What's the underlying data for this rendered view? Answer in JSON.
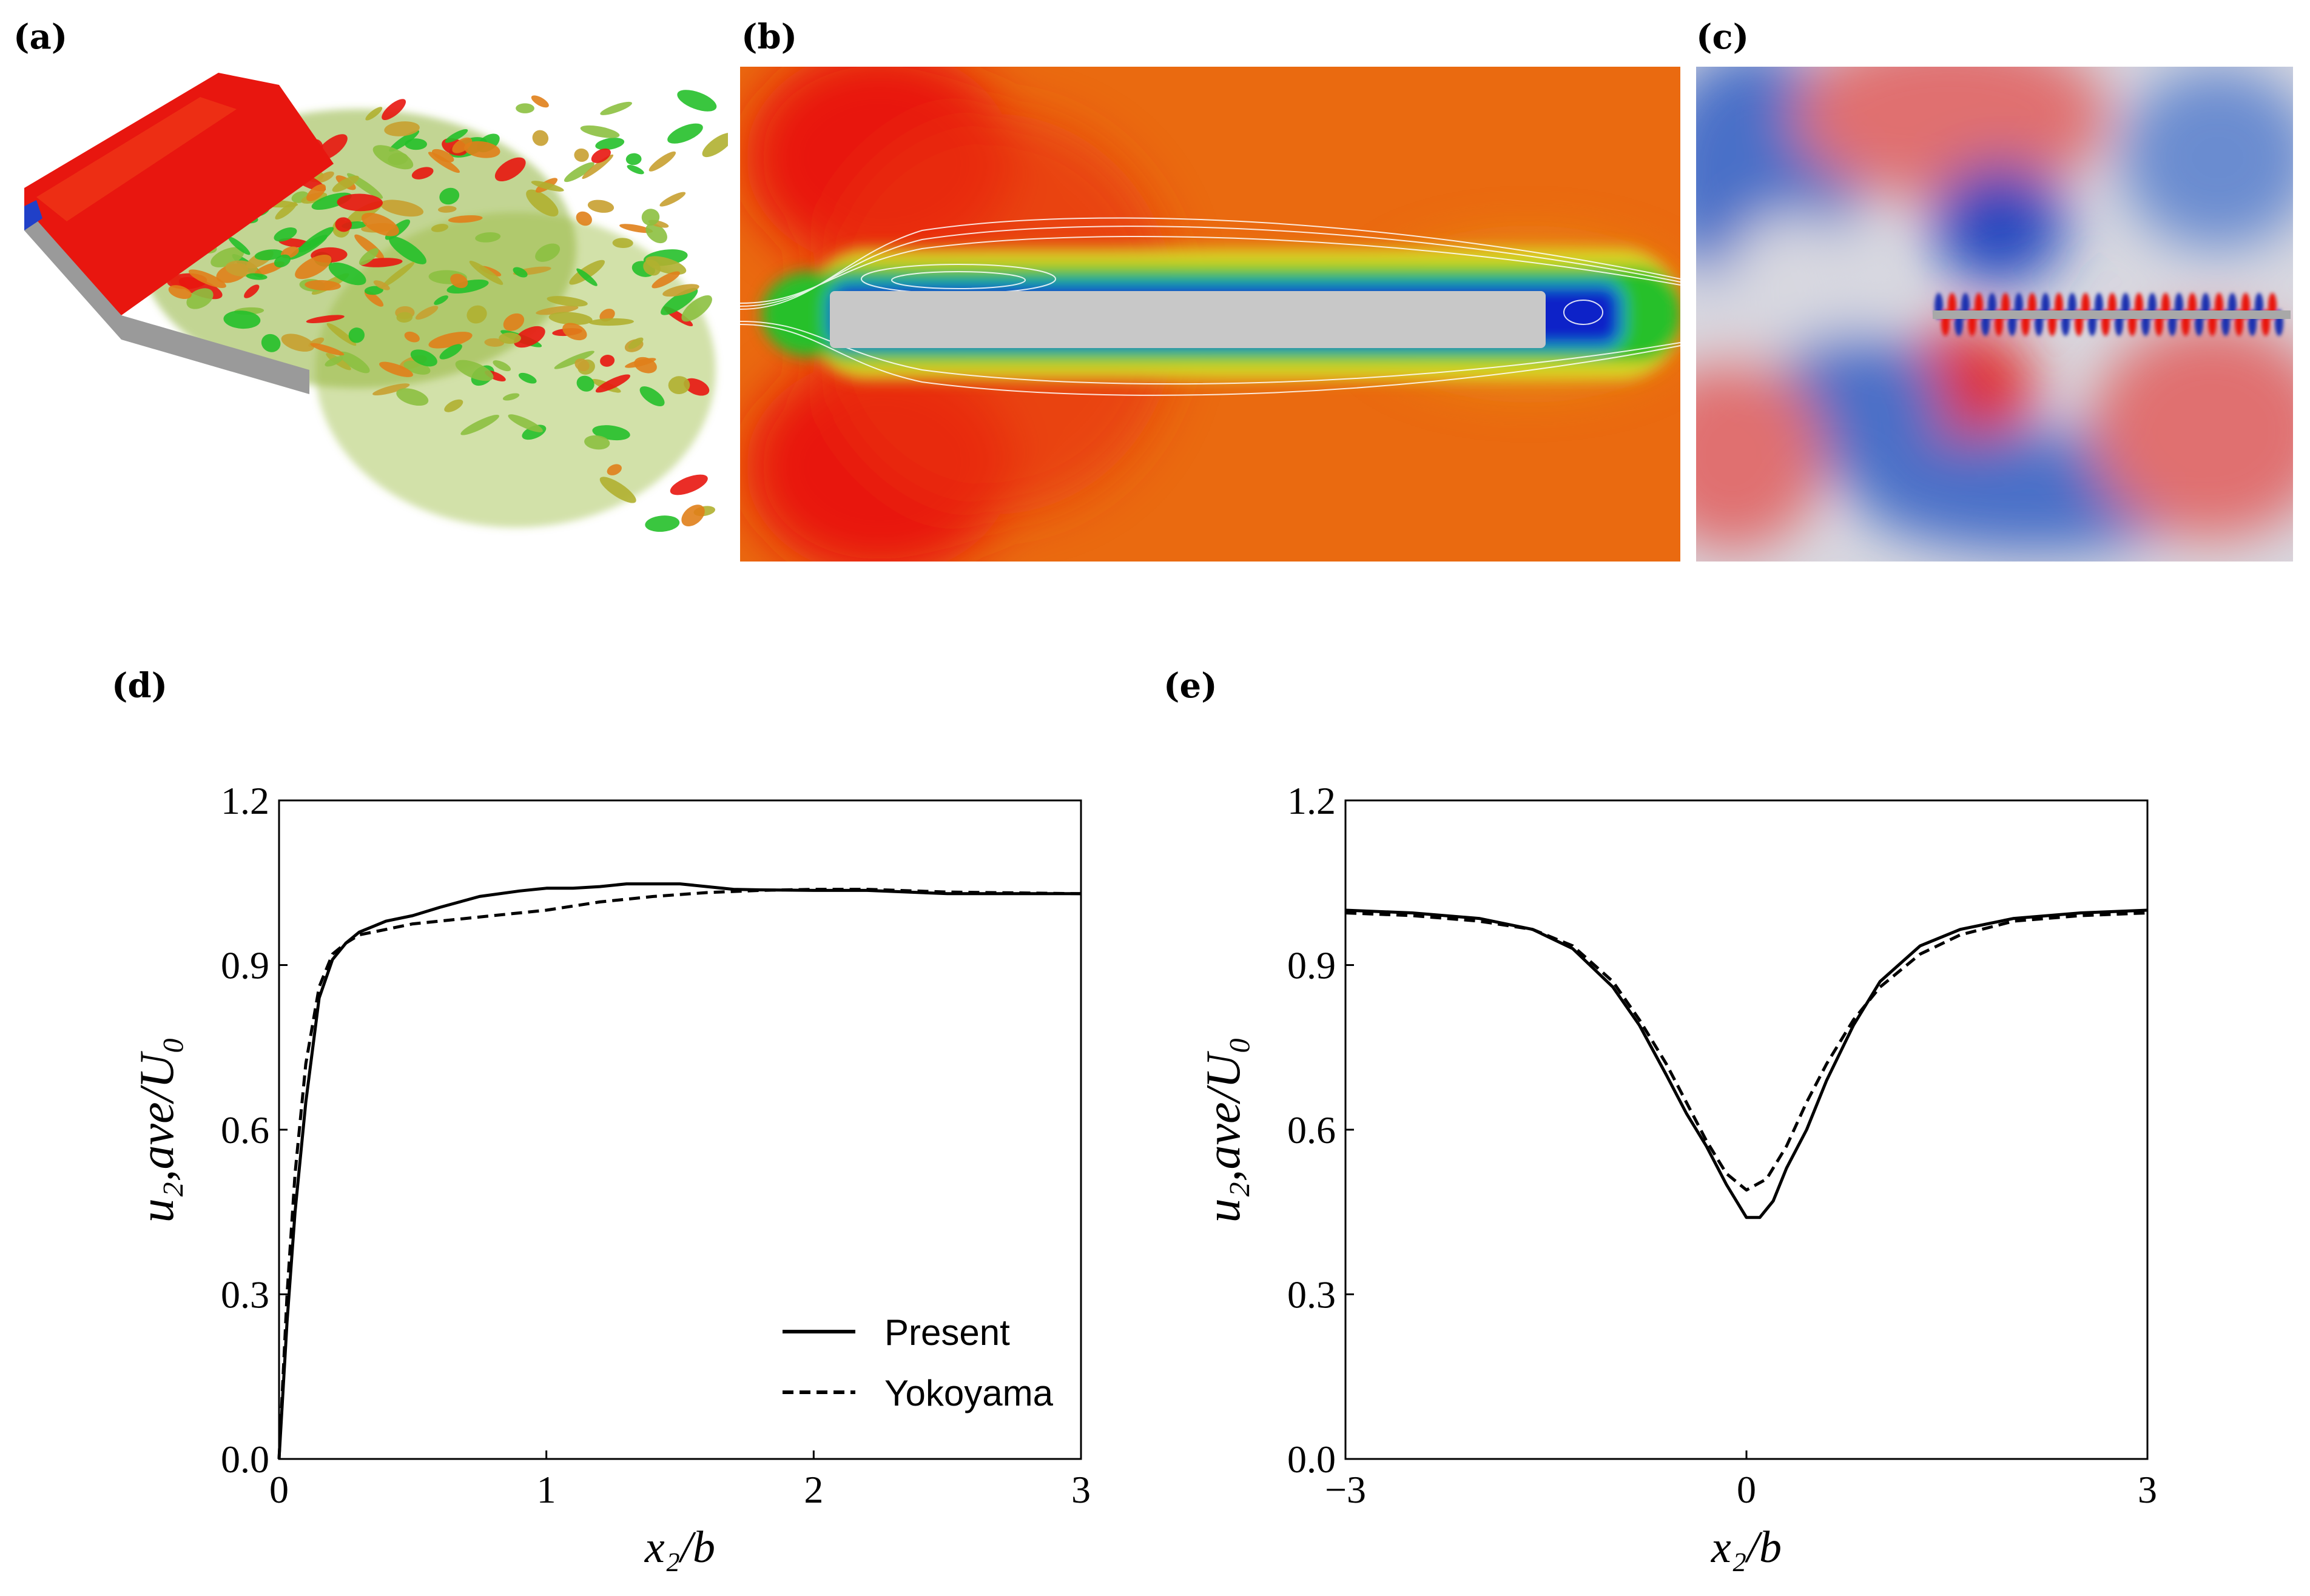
{
  "panel_labels": {
    "a": "(a)",
    "b": "(b)",
    "c": "(c)",
    "d": "(d)",
    "e": "(e)"
  },
  "colors": {
    "red": "#e8160f",
    "orange": "#ea6a10",
    "green": "#25c02a",
    "blue": "#0a20c8",
    "gray": "#c8c8c8",
    "line": "#000000"
  },
  "chart_data": [
    {
      "type": "line",
      "panel": "d",
      "xlabel": "x₂/b",
      "ylabel": "u₂,ave/U₀",
      "xlim": [
        0,
        3
      ],
      "ylim": [
        0,
        1.2
      ],
      "xticks": [
        0,
        1,
        2,
        3
      ],
      "xtick_labels": [
        "0",
        "1",
        "2",
        "3"
      ],
      "yticks": [
        0,
        0.3,
        0.6,
        0.9,
        1.2
      ],
      "ytick_labels": [
        "0.0",
        "0.3",
        "0.6",
        "0.9",
        "1.2"
      ],
      "legend": {
        "position": "bottom-right",
        "entries": [
          "Present",
          "Yokoyama"
        ]
      },
      "series": [
        {
          "name": "Present",
          "style": "solid",
          "x": [
            0,
            0.03,
            0.06,
            0.1,
            0.15,
            0.2,
            0.25,
            0.3,
            0.4,
            0.5,
            0.6,
            0.75,
            0.9,
            1.0,
            1.1,
            1.2,
            1.3,
            1.4,
            1.5,
            1.6,
            1.7,
            1.8,
            2.0,
            2.2,
            2.5,
            3.0
          ],
          "y": [
            0,
            0.25,
            0.45,
            0.65,
            0.84,
            0.91,
            0.94,
            0.96,
            0.98,
            0.99,
            1.005,
            1.025,
            1.035,
            1.04,
            1.04,
            1.043,
            1.048,
            1.048,
            1.048,
            1.043,
            1.038,
            1.037,
            1.036,
            1.036,
            1.03,
            1.03
          ]
        },
        {
          "name": "Yokoyama",
          "style": "dashed",
          "x": [
            0,
            0.03,
            0.06,
            0.1,
            0.15,
            0.2,
            0.25,
            0.3,
            0.4,
            0.5,
            0.6,
            0.8,
            1.0,
            1.2,
            1.4,
            1.6,
            1.8,
            2.0,
            2.2,
            2.5,
            3.0
          ],
          "y": [
            0,
            0.3,
            0.52,
            0.72,
            0.86,
            0.92,
            0.94,
            0.955,
            0.965,
            0.975,
            0.98,
            0.99,
            1.0,
            1.015,
            1.025,
            1.032,
            1.036,
            1.038,
            1.038,
            1.033,
            1.03
          ]
        }
      ]
    },
    {
      "type": "line",
      "panel": "e",
      "xlabel": "x₂/b",
      "ylabel": "u₂,ave/U₀",
      "xlim": [
        -3,
        3
      ],
      "ylim": [
        0,
        1.2
      ],
      "xticks": [
        -3,
        0,
        3
      ],
      "xtick_labels": [
        "−3",
        "0",
        "3"
      ],
      "yticks": [
        0,
        0.3,
        0.6,
        0.9,
        1.2
      ],
      "ytick_labels": [
        "0.0",
        "0.3",
        "0.6",
        "0.9",
        "1.2"
      ],
      "series": [
        {
          "name": "Present",
          "style": "solid",
          "x": [
            -3,
            -2.5,
            -2.0,
            -1.6,
            -1.3,
            -1.0,
            -0.8,
            -0.6,
            -0.45,
            -0.3,
            -0.15,
            0.0,
            0.1,
            0.2,
            0.3,
            0.45,
            0.6,
            0.8,
            1.0,
            1.3,
            1.6,
            2.0,
            2.5,
            3.0
          ],
          "y": [
            1.0,
            0.995,
            0.985,
            0.965,
            0.93,
            0.86,
            0.79,
            0.7,
            0.63,
            0.57,
            0.5,
            0.44,
            0.44,
            0.47,
            0.53,
            0.6,
            0.69,
            0.79,
            0.87,
            0.935,
            0.965,
            0.985,
            0.995,
            1.0
          ]
        },
        {
          "name": "Yokoyama",
          "style": "dashed",
          "x": [
            -3,
            -2.5,
            -2.0,
            -1.6,
            -1.3,
            -1.0,
            -0.8,
            -0.6,
            -0.45,
            -0.3,
            -0.15,
            0.0,
            0.15,
            0.3,
            0.45,
            0.6,
            0.8,
            1.0,
            1.3,
            1.6,
            2.0,
            2.5,
            3.0
          ],
          "y": [
            0.995,
            0.99,
            0.98,
            0.965,
            0.935,
            0.87,
            0.8,
            0.72,
            0.65,
            0.58,
            0.52,
            0.49,
            0.51,
            0.57,
            0.65,
            0.72,
            0.8,
            0.86,
            0.92,
            0.955,
            0.98,
            0.99,
            0.995
          ]
        }
      ]
    }
  ]
}
